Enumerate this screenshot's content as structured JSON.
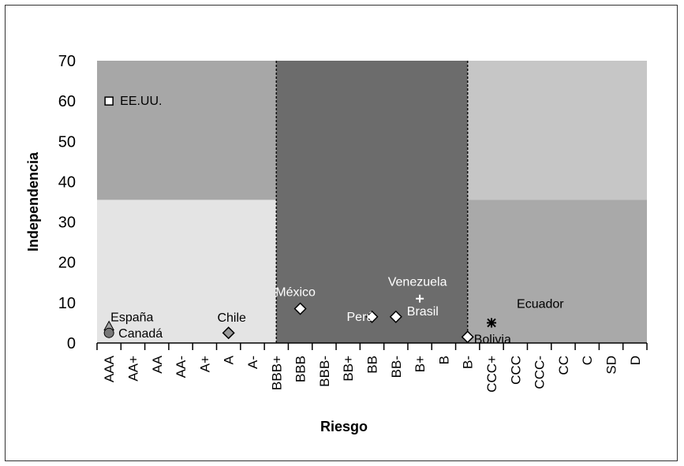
{
  "chart_data": {
    "type": "scatter",
    "title": "",
    "xlabel": "Riesgo",
    "ylabel": "Independencia",
    "categories": [
      "AAA",
      "AA+",
      "AA",
      "AA-",
      "A+",
      "A",
      "A-",
      "BBB+",
      "BBB",
      "BBB-",
      "BB+",
      "BB",
      "BB-",
      "B+",
      "B",
      "B-",
      "CCC+",
      "CCC",
      "CCC-",
      "CC",
      "C",
      "SD",
      "D"
    ],
    "ylim": [
      0,
      70
    ],
    "yticks": [
      0,
      10,
      20,
      30,
      40,
      50,
      60,
      70
    ],
    "grid": false,
    "legend": "none",
    "regions": [
      {
        "x_from": "AAA",
        "x_to": "BBB+",
        "y_from": 0,
        "y_to": 35.5,
        "color": "#e4e4e4"
      },
      {
        "x_from": "AAA",
        "x_to": "BBB+",
        "y_from": 35.5,
        "y_to": 70,
        "color": "#a7a7a7"
      },
      {
        "x_from": "BBB+",
        "x_to": "B-",
        "y_from": 0,
        "y_to": 70,
        "color": "#6c6c6c"
      },
      {
        "x_from": "B-",
        "x_to": "D",
        "y_from": 0,
        "y_to": 35.5,
        "color": "#a9a9a9"
      },
      {
        "x_from": "B-",
        "x_to": "D",
        "y_from": 35.5,
        "y_to": 70,
        "color": "#c6c6c6"
      }
    ],
    "divider_lines": [
      "BBB+",
      "B-"
    ],
    "points": [
      {
        "label": "EE.UU.",
        "x": "AAA",
        "y": 60,
        "marker": "square",
        "fill": "#ffffff"
      },
      {
        "label": "España",
        "x": "AAA",
        "y": 4,
        "marker": "triangle",
        "fill": "#a0a0a0"
      },
      {
        "label": "Canadá",
        "x": "AAA",
        "y": 2.5,
        "marker": "circle",
        "fill": "#777777"
      },
      {
        "label": "Chile",
        "x": "A",
        "y": 2.5,
        "marker": "diamond",
        "fill": "#999999"
      },
      {
        "label": "México",
        "x": "BBB",
        "y": 8.5,
        "marker": "diamond",
        "fill": "#ffffff"
      },
      {
        "label": "Perú",
        "x": "BB",
        "y": 6.5,
        "marker": "diamond",
        "fill": "#ffffff"
      },
      {
        "label": "Brasil",
        "x": "BB-",
        "y": 6.5,
        "marker": "diamond",
        "fill": "#ffffff"
      },
      {
        "label": "Venezuela",
        "x": "B+",
        "y": 11,
        "marker": "plus",
        "fill": "#ffffff"
      },
      {
        "label": "Bolivia",
        "x": "B-",
        "y": 1.5,
        "marker": "diamond",
        "fill": "#ffffff"
      },
      {
        "label": "Ecuador",
        "x": "CCC+",
        "y": 5,
        "marker": "asterisk",
        "fill": "#000000"
      }
    ]
  }
}
